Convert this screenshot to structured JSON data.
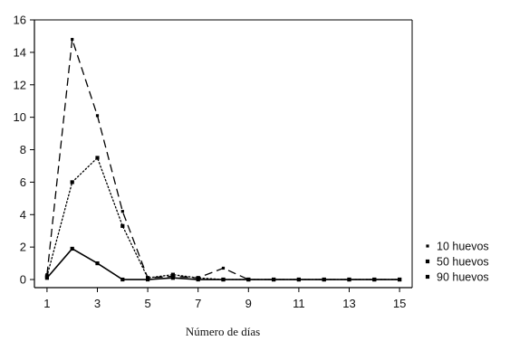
{
  "chart_data": {
    "type": "line",
    "xlabel": "Número de días",
    "ylabel": "",
    "xlim": [
      0.5,
      15.5
    ],
    "ylim": [
      -0.5,
      16
    ],
    "x_ticks": [
      1,
      3,
      5,
      7,
      9,
      11,
      13,
      15
    ],
    "y_ticks": [
      0,
      2,
      4,
      6,
      8,
      10,
      12,
      14,
      16
    ],
    "x": [
      1,
      2,
      3,
      4,
      5,
      6,
      7,
      8,
      9,
      10,
      11,
      12,
      13,
      14,
      15
    ],
    "legend_position": "right",
    "series": [
      {
        "name": "10 huevos",
        "line_style": "dashed",
        "marker": "small-square",
        "values": [
          0.3,
          14.8,
          10.1,
          4.2,
          0.1,
          0.2,
          0.1,
          0.7,
          0.0,
          0.0,
          0.0,
          0.0,
          0.0,
          0.0,
          0.0
        ]
      },
      {
        "name": "50 huevos",
        "line_style": "dotted",
        "marker": "square",
        "values": [
          0.2,
          6.0,
          7.5,
          3.3,
          0.1,
          0.3,
          0.1,
          0.0,
          0.0,
          0.0,
          0.0,
          0.0,
          0.0,
          0.0,
          0.0
        ]
      },
      {
        "name": "90 huevos",
        "line_style": "solid",
        "marker": "square",
        "values": [
          0.1,
          1.9,
          1.0,
          0.0,
          0.0,
          0.1,
          0.0,
          0.0,
          0.0,
          0.0,
          0.0,
          0.0,
          0.0,
          0.0,
          0.0
        ]
      }
    ]
  }
}
